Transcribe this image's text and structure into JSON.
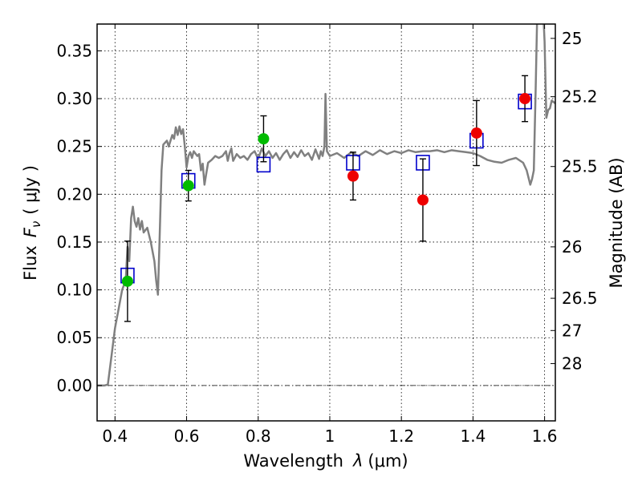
{
  "chart_data": {
    "type": "scatter",
    "xlabel_prefix": "Wavelength",
    "xlabel_symbol": "λ",
    "xlabel_unit": "(μm)",
    "ylabel_prefix": "Flux",
    "ylabel_symbol": "F",
    "ylabel_sub": "ν",
    "ylabel_unit": "( μJy )",
    "y2label": "Magnitude (AB)",
    "xlim": [
      0.35,
      1.63
    ],
    "ylim": [
      -0.037,
      0.378
    ],
    "x_ticks": [
      0.4,
      0.6,
      0.8,
      1.0,
      1.2,
      1.4,
      1.6
    ],
    "x_tick_labels": [
      "0.4",
      "0.6",
      "0.8",
      "1",
      "1.2",
      "1.4",
      "1.6"
    ],
    "y_ticks": [
      0.0,
      0.05,
      0.1,
      0.15,
      0.2,
      0.25,
      0.3,
      0.35
    ],
    "y_tick_labels": [
      "0.00",
      "0.05",
      "0.10",
      "0.15",
      "0.20",
      "0.25",
      "0.30",
      "0.35"
    ],
    "mag_ticks": [
      {
        "label": "25",
        "flux": 0.363
      },
      {
        "label": "25.2",
        "flux": 0.302
      },
      {
        "label": "25.5",
        "flux": 0.229
      },
      {
        "label": "26",
        "flux": 0.145
      },
      {
        "label": "26.5",
        "flux": 0.0912
      },
      {
        "label": "27",
        "flux": 0.0575
      },
      {
        "label": "28",
        "flux": 0.0229
      }
    ],
    "grid": true,
    "zero_line": true,
    "colors": {
      "model": "#808080",
      "model_boxes": "#0000cc",
      "green_points": "#00bb00",
      "red_points": "#ee0000",
      "errorbars": "#000000"
    },
    "model_spectrum": [
      [
        0.35,
        0.0
      ],
      [
        0.37,
        0.0
      ],
      [
        0.38,
        0.001
      ],
      [
        0.39,
        0.03
      ],
      [
        0.4,
        0.06
      ],
      [
        0.41,
        0.08
      ],
      [
        0.42,
        0.1
      ],
      [
        0.43,
        0.11
      ],
      [
        0.435,
        0.145
      ],
      [
        0.44,
        0.13
      ],
      [
        0.445,
        0.175
      ],
      [
        0.45,
        0.187
      ],
      [
        0.455,
        0.172
      ],
      [
        0.46,
        0.166
      ],
      [
        0.465,
        0.175
      ],
      [
        0.47,
        0.163
      ],
      [
        0.475,
        0.172
      ],
      [
        0.48,
        0.16
      ],
      [
        0.49,
        0.165
      ],
      [
        0.5,
        0.15
      ],
      [
        0.51,
        0.13
      ],
      [
        0.515,
        0.11
      ],
      [
        0.52,
        0.095
      ],
      [
        0.525,
        0.16
      ],
      [
        0.53,
        0.225
      ],
      [
        0.535,
        0.252
      ],
      [
        0.545,
        0.256
      ],
      [
        0.55,
        0.25
      ],
      [
        0.56,
        0.262
      ],
      [
        0.565,
        0.258
      ],
      [
        0.57,
        0.27
      ],
      [
        0.575,
        0.262
      ],
      [
        0.58,
        0.271
      ],
      [
        0.585,
        0.263
      ],
      [
        0.59,
        0.268
      ],
      [
        0.595,
        0.25
      ],
      [
        0.6,
        0.228
      ],
      [
        0.605,
        0.24
      ],
      [
        0.61,
        0.244
      ],
      [
        0.615,
        0.238
      ],
      [
        0.62,
        0.245
      ],
      [
        0.63,
        0.24
      ],
      [
        0.635,
        0.242
      ],
      [
        0.64,
        0.225
      ],
      [
        0.645,
        0.232
      ],
      [
        0.65,
        0.21
      ],
      [
        0.655,
        0.222
      ],
      [
        0.66,
        0.233
      ],
      [
        0.67,
        0.236
      ],
      [
        0.68,
        0.24
      ],
      [
        0.69,
        0.238
      ],
      [
        0.7,
        0.24
      ],
      [
        0.71,
        0.245
      ],
      [
        0.715,
        0.235
      ],
      [
        0.72,
        0.243
      ],
      [
        0.725,
        0.248
      ],
      [
        0.73,
        0.235
      ],
      [
        0.74,
        0.242
      ],
      [
        0.75,
        0.238
      ],
      [
        0.76,
        0.24
      ],
      [
        0.77,
        0.236
      ],
      [
        0.78,
        0.242
      ],
      [
        0.79,
        0.245
      ],
      [
        0.8,
        0.237
      ],
      [
        0.81,
        0.248
      ],
      [
        0.82,
        0.24
      ],
      [
        0.83,
        0.245
      ],
      [
        0.84,
        0.238
      ],
      [
        0.85,
        0.243
      ],
      [
        0.86,
        0.236
      ],
      [
        0.87,
        0.242
      ],
      [
        0.88,
        0.246
      ],
      [
        0.89,
        0.238
      ],
      [
        0.9,
        0.244
      ],
      [
        0.91,
        0.239
      ],
      [
        0.92,
        0.246
      ],
      [
        0.93,
        0.24
      ],
      [
        0.94,
        0.243
      ],
      [
        0.95,
        0.236
      ],
      [
        0.96,
        0.247
      ],
      [
        0.97,
        0.237
      ],
      [
        0.975,
        0.245
      ],
      [
        0.98,
        0.24
      ],
      [
        0.985,
        0.25
      ],
      [
        0.988,
        0.305
      ],
      [
        0.992,
        0.245
      ],
      [
        1.0,
        0.24
      ],
      [
        1.02,
        0.243
      ],
      [
        1.04,
        0.238
      ],
      [
        1.06,
        0.244
      ],
      [
        1.08,
        0.24
      ],
      [
        1.1,
        0.245
      ],
      [
        1.12,
        0.241
      ],
      [
        1.14,
        0.246
      ],
      [
        1.16,
        0.242
      ],
      [
        1.18,
        0.245
      ],
      [
        1.2,
        0.243
      ],
      [
        1.22,
        0.246
      ],
      [
        1.24,
        0.244
      ],
      [
        1.26,
        0.245
      ],
      [
        1.28,
        0.245
      ],
      [
        1.3,
        0.246
      ],
      [
        1.32,
        0.244
      ],
      [
        1.34,
        0.246
      ],
      [
        1.36,
        0.245
      ],
      [
        1.38,
        0.244
      ],
      [
        1.4,
        0.243
      ],
      [
        1.42,
        0.24
      ],
      [
        1.44,
        0.236
      ],
      [
        1.46,
        0.234
      ],
      [
        1.48,
        0.233
      ],
      [
        1.5,
        0.236
      ],
      [
        1.52,
        0.238
      ],
      [
        1.54,
        0.233
      ],
      [
        1.55,
        0.225
      ],
      [
        1.56,
        0.21
      ],
      [
        1.565,
        0.216
      ],
      [
        1.57,
        0.225
      ],
      [
        1.575,
        0.31
      ],
      [
        1.58,
        0.4
      ],
      [
        1.595,
        0.4
      ],
      [
        1.6,
        0.36
      ],
      [
        1.605,
        0.28
      ],
      [
        1.61,
        0.288
      ],
      [
        1.615,
        0.29
      ],
      [
        1.62,
        0.298
      ],
      [
        1.63,
        0.295
      ]
    ],
    "model_boxes": [
      {
        "x": 0.435,
        "y": 0.115
      },
      {
        "x": 0.605,
        "y": 0.214
      },
      {
        "x": 0.815,
        "y": 0.231
      },
      {
        "x": 1.065,
        "y": 0.233
      },
      {
        "x": 1.26,
        "y": 0.233
      },
      {
        "x": 1.41,
        "y": 0.256
      },
      {
        "x": 1.545,
        "y": 0.297
      }
    ],
    "points_green": [
      {
        "x": 0.435,
        "y": 0.109,
        "err": 0.042
      },
      {
        "x": 0.605,
        "y": 0.209,
        "err": 0.016
      },
      {
        "x": 0.815,
        "y": 0.258,
        "err": 0.024
      }
    ],
    "points_red": [
      {
        "x": 1.065,
        "y": 0.219,
        "err": 0.025
      },
      {
        "x": 1.26,
        "y": 0.194,
        "err": 0.043
      },
      {
        "x": 1.41,
        "y": 0.264,
        "err": 0.034
      },
      {
        "x": 1.545,
        "y": 0.3,
        "err": 0.024
      }
    ]
  }
}
